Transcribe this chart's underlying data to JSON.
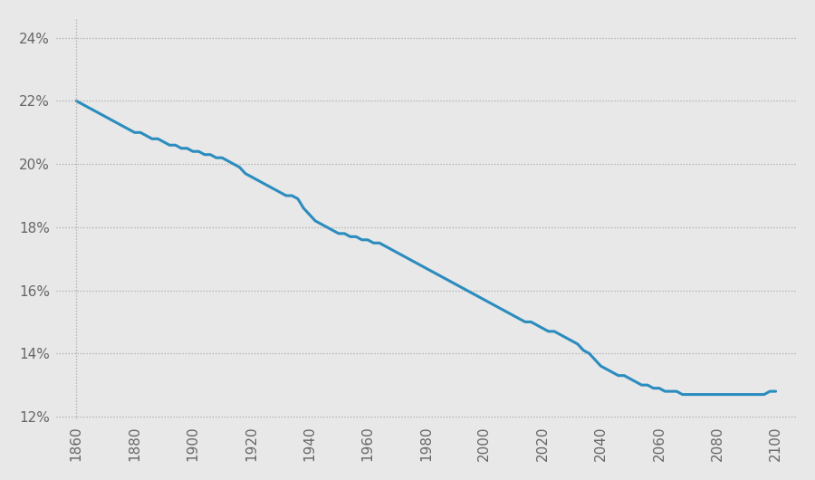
{
  "title": "",
  "background_color": "#e8e8e8",
  "line_color": "#2b8cbe",
  "line_width": 2.2,
  "grid_color": "#aaaaaa",
  "tick_label_color": "#666666",
  "ylim": [
    0.119,
    0.246
  ],
  "yticks": [
    0.12,
    0.14,
    0.16,
    0.18,
    0.2,
    0.22,
    0.24
  ],
  "xlim": [
    1853,
    2107
  ],
  "xticks": [
    1860,
    1880,
    1900,
    1920,
    1940,
    1960,
    1980,
    2000,
    2020,
    2040,
    2060,
    2080,
    2100
  ],
  "x": [
    1860,
    1862,
    1864,
    1866,
    1868,
    1870,
    1872,
    1874,
    1876,
    1878,
    1880,
    1882,
    1884,
    1886,
    1888,
    1890,
    1892,
    1894,
    1896,
    1898,
    1900,
    1902,
    1904,
    1906,
    1908,
    1910,
    1912,
    1914,
    1916,
    1918,
    1920,
    1922,
    1924,
    1926,
    1928,
    1930,
    1932,
    1934,
    1936,
    1938,
    1940,
    1942,
    1944,
    1946,
    1948,
    1950,
    1952,
    1954,
    1956,
    1958,
    1960,
    1962,
    1964,
    1966,
    1968,
    1970,
    1972,
    1974,
    1976,
    1978,
    1980,
    1982,
    1984,
    1986,
    1988,
    1990,
    1992,
    1994,
    1996,
    1998,
    2000,
    2002,
    2004,
    2006,
    2008,
    2010,
    2012,
    2014,
    2016,
    2018,
    2020,
    2022,
    2024,
    2026,
    2028,
    2030,
    2032,
    2034,
    2036,
    2038,
    2040,
    2042,
    2044,
    2046,
    2048,
    2050,
    2052,
    2054,
    2056,
    2058,
    2060,
    2062,
    2064,
    2066,
    2068,
    2070,
    2072,
    2074,
    2076,
    2078,
    2080,
    2082,
    2084,
    2086,
    2088,
    2090,
    2092,
    2094,
    2096,
    2098,
    2100
  ],
  "y": [
    0.22,
    0.219,
    0.218,
    0.217,
    0.216,
    0.215,
    0.214,
    0.213,
    0.212,
    0.211,
    0.21,
    0.21,
    0.209,
    0.208,
    0.208,
    0.207,
    0.206,
    0.206,
    0.205,
    0.205,
    0.204,
    0.204,
    0.203,
    0.203,
    0.202,
    0.202,
    0.201,
    0.2,
    0.199,
    0.197,
    0.196,
    0.195,
    0.194,
    0.193,
    0.192,
    0.191,
    0.19,
    0.19,
    0.189,
    0.186,
    0.184,
    0.182,
    0.181,
    0.18,
    0.179,
    0.178,
    0.178,
    0.177,
    0.177,
    0.176,
    0.176,
    0.175,
    0.175,
    0.174,
    0.173,
    0.172,
    0.171,
    0.17,
    0.169,
    0.168,
    0.167,
    0.166,
    0.165,
    0.164,
    0.163,
    0.162,
    0.161,
    0.16,
    0.159,
    0.158,
    0.157,
    0.156,
    0.155,
    0.154,
    0.153,
    0.152,
    0.151,
    0.15,
    0.15,
    0.149,
    0.148,
    0.147,
    0.147,
    0.146,
    0.145,
    0.144,
    0.143,
    0.141,
    0.14,
    0.138,
    0.136,
    0.135,
    0.134,
    0.133,
    0.133,
    0.132,
    0.131,
    0.13,
    0.13,
    0.129,
    0.129,
    0.128,
    0.128,
    0.128,
    0.127,
    0.127,
    0.127,
    0.127,
    0.127,
    0.127,
    0.127,
    0.127,
    0.127,
    0.127,
    0.127,
    0.127,
    0.127,
    0.127,
    0.127,
    0.128,
    0.128
  ]
}
